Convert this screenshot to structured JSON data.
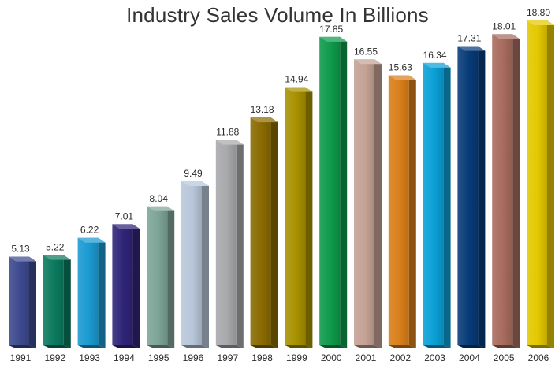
{
  "chart_data": {
    "type": "bar",
    "title": "Industry Sales Volume In Billions",
    "xlabel": "",
    "ylabel": "",
    "ylim": [
      0,
      18.8
    ],
    "grid": false,
    "legend": "none",
    "categories": [
      "1991",
      "1992",
      "1993",
      "1994",
      "1995",
      "1996",
      "1997",
      "1998",
      "1999",
      "2000",
      "2001",
      "2002",
      "2003",
      "2004",
      "2005",
      "2006"
    ],
    "values": [
      5.13,
      5.22,
      6.22,
      7.01,
      8.04,
      9.49,
      11.88,
      13.18,
      14.94,
      17.85,
      16.55,
      15.63,
      16.34,
      17.31,
      18.01,
      18.8
    ],
    "value_labels": [
      "5.13",
      "5.22",
      "6.22",
      "7.01",
      "8.04",
      "9.49",
      "11.88",
      "13.18",
      "14.94",
      "17.85",
      "16.55",
      "15.63",
      "16.34",
      "17.31",
      "18.01",
      "18.80"
    ],
    "colors": [
      "#3d4a8e",
      "#0b7a5e",
      "#1a9ad0",
      "#2f2478",
      "#7ea598",
      "#b7c6d9",
      "#a7a9ac",
      "#8a6a00",
      "#a89200",
      "#0e9a4a",
      "#c4a294",
      "#d97f1a",
      "#0aa0d6",
      "#073b78",
      "#a76b5e",
      "#e3c800"
    ]
  }
}
